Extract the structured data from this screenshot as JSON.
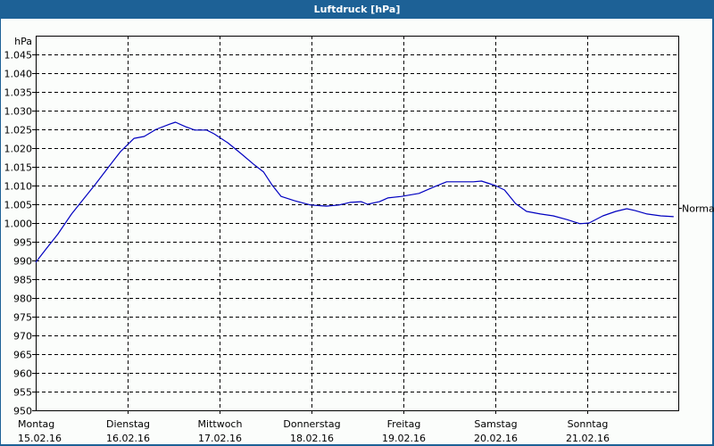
{
  "window": {
    "title": "Luftdruck [hPa]",
    "background_color": "#1d6196",
    "panel_color": "#fbfdfb"
  },
  "chart_data": {
    "type": "line",
    "title": "Luftdruck [hPa]",
    "xlabel": "",
    "ylabel": "hPa",
    "ylim": [
      950,
      1045
    ],
    "yticks": [
      950,
      955,
      960,
      965,
      970,
      975,
      980,
      985,
      990,
      995,
      1000,
      1005,
      1010,
      1015,
      1020,
      1025,
      1030,
      1035,
      1040,
      1045
    ],
    "ytick_labels": [
      "950",
      "955",
      "960",
      "965",
      "970",
      "975",
      "980",
      "985",
      "990",
      "995",
      "1.000",
      "1.005",
      "1.010",
      "1.015",
      "1.020",
      "1.025",
      "1.030",
      "1.035",
      "1.040",
      "1.045"
    ],
    "xlim": [
      0,
      7.0
    ],
    "x_categories": [
      {
        "day": "Montag",
        "date": "15.02.16"
      },
      {
        "day": "Dienstag",
        "date": "16.02.16"
      },
      {
        "day": "Mittwoch",
        "date": "17.02.16"
      },
      {
        "day": "Donnerstag",
        "date": "18.02.16"
      },
      {
        "day": "Freitag",
        "date": "19.02.16"
      },
      {
        "day": "Samstag",
        "date": "20.02.16"
      },
      {
        "day": "Sonntag",
        "date": "21.02.16"
      }
    ],
    "grid": {
      "horizontal": true,
      "vertical": true,
      "style": "dashed"
    },
    "reference_line": {
      "label": "Normal",
      "value": 1004
    },
    "series": [
      {
        "name": "Luftdruck",
        "color": "#0000c0",
        "x": [
          0.0,
          0.12,
          0.24,
          0.39,
          0.53,
          0.66,
          0.8,
          0.92,
          1.07,
          1.18,
          1.31,
          1.46,
          1.52,
          1.63,
          1.73,
          1.86,
          1.94,
          2.09,
          2.23,
          2.38,
          2.48,
          2.57,
          2.67,
          2.82,
          2.99,
          3.16,
          3.3,
          3.42,
          3.54,
          3.61,
          3.74,
          3.83,
          3.98,
          4.17,
          4.32,
          4.47,
          4.61,
          4.76,
          4.85,
          5.0,
          5.1,
          5.22,
          5.34,
          5.49,
          5.63,
          5.78,
          5.92,
          6.02,
          6.17,
          6.31,
          6.43,
          6.52,
          6.65,
          6.8,
          6.94
        ],
        "values": [
          989.5,
          993.3,
          997.0,
          1002.4,
          1006.7,
          1010.7,
          1015.2,
          1019.0,
          1022.6,
          1023.1,
          1025.0,
          1026.4,
          1026.9,
          1025.7,
          1024.8,
          1024.8,
          1023.8,
          1021.4,
          1018.6,
          1015.5,
          1013.6,
          1010.2,
          1007.1,
          1005.9,
          1004.8,
          1004.5,
          1004.8,
          1005.5,
          1005.7,
          1005.0,
          1005.7,
          1006.7,
          1007.1,
          1007.9,
          1009.5,
          1011.0,
          1011.0,
          1011.0,
          1011.2,
          1010.0,
          1008.8,
          1005.2,
          1003.1,
          1002.4,
          1001.9,
          1000.9,
          999.8,
          1000.0,
          1001.9,
          1003.1,
          1003.8,
          1003.3,
          1002.4,
          1001.9,
          1001.7
        ]
      }
    ]
  }
}
